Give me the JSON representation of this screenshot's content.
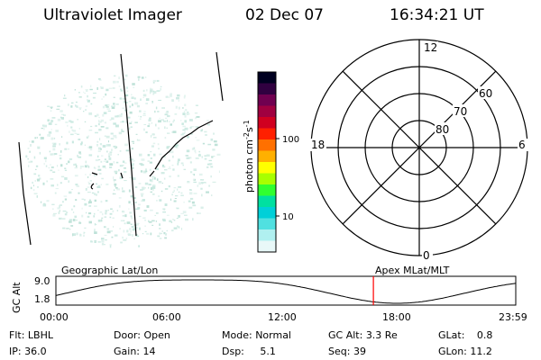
{
  "header": {
    "title": "Ultraviolet Imager",
    "date": "02 Dec 07",
    "time": "16:34:21 UT"
  },
  "colorbar": {
    "unit_label": "photon cm",
    "unit_exp1": "-2",
    "unit_s": "s",
    "unit_exp2": "-1",
    "ticks": [
      {
        "label": "100",
        "value": 100
      },
      {
        "label": "10",
        "value": 10
      }
    ],
    "colors": [
      "#000020",
      "#300040",
      "#700050",
      "#a00040",
      "#d00020",
      "#ff2000",
      "#ff7000",
      "#ffb000",
      "#ffff00",
      "#a8ff00",
      "#30ff30",
      "#00e0a0",
      "#00d0d8",
      "#50e0e0",
      "#b0f0f0",
      "#e8f8f8"
    ]
  },
  "polar_plot": {
    "labels": {
      "top": "12",
      "bottom": "0",
      "left": "18",
      "right": "6",
      "ring_80": "80",
      "ring_70": "70",
      "ring_60": "60"
    }
  },
  "timeline": {
    "y_title": "GC Alt",
    "y_max": "9.0",
    "y_min": "1.8",
    "left_label": "Geographic Lat/Lon",
    "right_label": "Apex  MLat/MLT",
    "x_ticks": [
      "00:00",
      "06:00",
      "12:00",
      "18:00",
      "23:59"
    ],
    "current_time_hours": 16.57,
    "accent": "#ff0000"
  },
  "info_rows": [
    [
      {
        "label": "Flt:",
        "value": "LBHL"
      },
      {
        "label": "Door:",
        "value": "Open"
      },
      {
        "label": "Mode:",
        "value": "Normal"
      },
      {
        "label": "GC Alt:",
        "value": "3.3 Re"
      },
      {
        "label": "GLat:",
        "value": "0.8"
      }
    ],
    [
      {
        "label": "IP:",
        "value": "36.0"
      },
      {
        "label": "Gain:",
        "value": "14"
      },
      {
        "label": "Dsp:",
        "value": "5.1"
      },
      {
        "label": "Seq:",
        "value": "39"
      },
      {
        "label": "GLon:",
        "value": "11.2"
      }
    ]
  ]
}
